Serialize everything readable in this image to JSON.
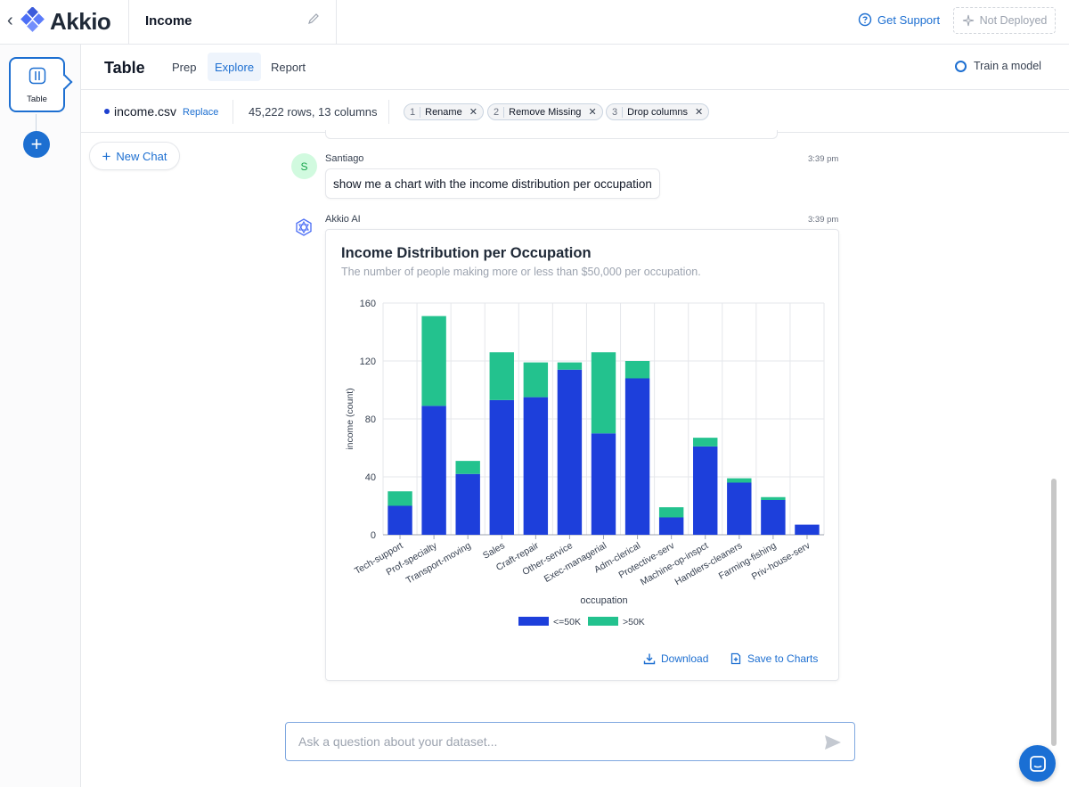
{
  "topbar": {
    "brand_name": "Akkio",
    "project_title": "Income",
    "support_label": "Get Support",
    "deploy_label": "Not Deployed"
  },
  "rail": {
    "card_label": "Table"
  },
  "subheader": {
    "page_title": "Table",
    "tabs": [
      {
        "label": "Prep",
        "active": false
      },
      {
        "label": "Explore",
        "active": true
      },
      {
        "label": "Report",
        "active": false
      }
    ],
    "train_label": "Train a model"
  },
  "dataset": {
    "filename": "income.csv",
    "replace_label": "Replace",
    "rows_info": "45,222 rows, 13 columns",
    "steps": [
      {
        "num": "1",
        "label": "Rename"
      },
      {
        "num": "2",
        "label": "Remove Missing"
      },
      {
        "num": "3",
        "label": "Drop columns"
      }
    ]
  },
  "new_chat_label": "New Chat",
  "chat": {
    "user": {
      "avatar_initial": "S",
      "name": "Santiago",
      "time": "3:39 pm",
      "message": "show me a chart with the income distribution per occupation"
    },
    "ai": {
      "name": "Akkio AI",
      "time": "3:39 pm",
      "download_label": "Download",
      "save_label": "Save to Charts"
    }
  },
  "chart_data": {
    "type": "bar",
    "stacked": true,
    "title": "Income Distribution per Occupation",
    "subtitle": "The number of people making more or less than $50,000 per occupation.",
    "xlabel": "occupation",
    "ylabel": "income (count)",
    "ylim": [
      0,
      160
    ],
    "yticks": [
      0,
      40,
      80,
      120,
      160
    ],
    "grid": true,
    "legend_position": "bottom",
    "categories": [
      "Tech-support",
      "Prof-specialty",
      "Transport-moving",
      "Sales",
      "Craft-repair",
      "Other-service",
      "Exec-managerial",
      "Adm-clerical",
      "Protective-serv",
      "Machine-op-inspct",
      "Handlers-cleaners",
      "Farming-fishing",
      "Priv-house-serv"
    ],
    "series": [
      {
        "name": "<=50K",
        "color": "#1d3fdb",
        "values": [
          20,
          89,
          42,
          93,
          95,
          114,
          70,
          108,
          12,
          61,
          36,
          24,
          7
        ]
      },
      {
        "name": ">50K",
        "color": "#23c28e",
        "values": [
          10,
          62,
          9,
          33,
          24,
          5,
          56,
          12,
          7,
          6,
          3,
          2,
          0
        ]
      }
    ]
  },
  "ask": {
    "placeholder": "Ask a question about your dataset..."
  }
}
